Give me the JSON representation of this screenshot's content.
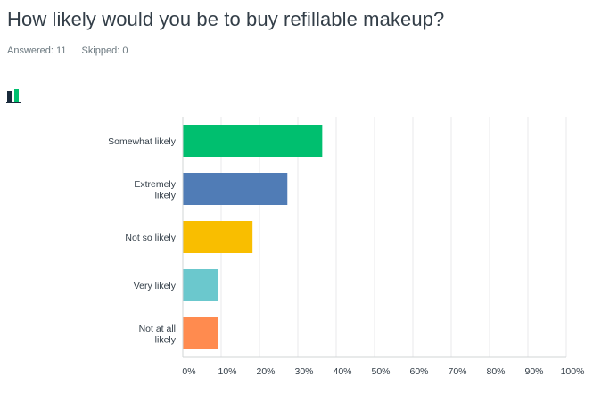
{
  "question": {
    "title": "How likely would you be to buy refillable makeup?"
  },
  "stats": {
    "answered": "Answered: 11",
    "skipped": "Skipped: 0"
  },
  "chart_icon": "bar-chart-icon",
  "colors": {
    "grid": "#e8eaeb",
    "axis": "#d0d4d6",
    "text": "#333e48",
    "muted": "#6b787f"
  },
  "chart_data": {
    "type": "bar",
    "orientation": "horizontal",
    "categories": [
      "Somewhat likely",
      "Extremely likely",
      "Not so likely",
      "Very likely",
      "Not at all likely"
    ],
    "category_lines": [
      [
        "Somewhat likely"
      ],
      [
        "Extremely",
        "likely"
      ],
      [
        "Not so likely"
      ],
      [
        "Very likely"
      ],
      [
        "Not at all",
        "likely"
      ]
    ],
    "values": [
      36.36,
      27.27,
      18.18,
      9.09,
      9.09
    ],
    "colors": [
      "#00bf6f",
      "#507cb6",
      "#f9be00",
      "#6bc8cd",
      "#ff8b4f"
    ],
    "xlim": [
      0,
      100
    ],
    "xticks": [
      "0%",
      "10%",
      "20%",
      "30%",
      "40%",
      "50%",
      "60%",
      "70%",
      "80%",
      "90%",
      "100%"
    ],
    "grid": true,
    "title": "",
    "xlabel": "",
    "ylabel": ""
  }
}
